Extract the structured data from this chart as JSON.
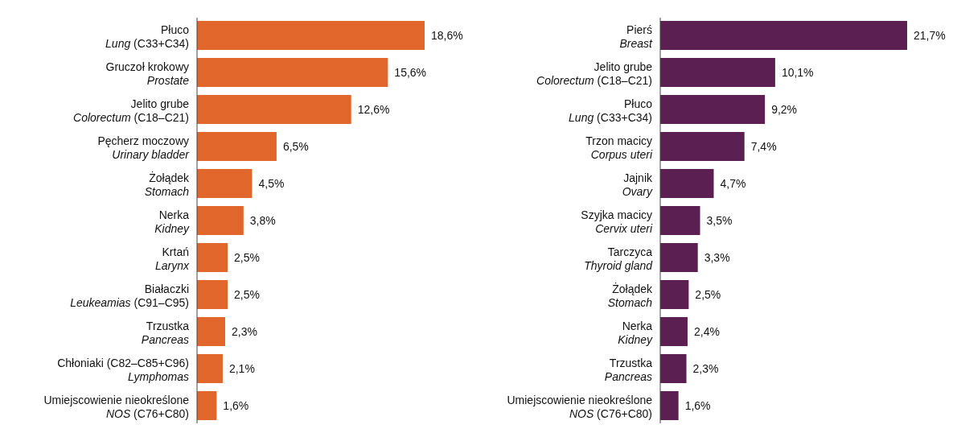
{
  "chart_data": [
    {
      "type": "bar",
      "orientation": "horizontal",
      "categories": [
        "Płuco\nLung (C33+C34)",
        "Gruczoł krokowy\nProstate",
        "Jelito grube\nColorectum (C18–C21)",
        "Pęcherz moczowy\nUrinary bladder",
        "Żołądek\nStomach",
        "Nerka\nKidney",
        "Krtań\nLarynx",
        "Białaczki\nLeukeamias (C91–C95)",
        "Trzustka\nPancreas",
        "Chłoniaki (C82–C85+C96)\nLymphomas",
        "Umiejscowienie nieokreślone\nNOS (C76+C80)"
      ],
      "values": [
        18.6,
        15.6,
        12.6,
        6.5,
        4.5,
        3.8,
        2.5,
        2.5,
        2.3,
        2.1,
        1.6
      ],
      "value_labels": [
        "18,6%",
        "15,6%",
        "12,6%",
        "6,5%",
        "4,5%",
        "3,8%",
        "2,5%",
        "2,5%",
        "2,3%",
        "2,1%",
        "1,6%"
      ],
      "color": "#e0662c"
    },
    {
      "type": "bar",
      "orientation": "horizontal",
      "categories": [
        "Pierś\nBreast",
        "Jelito grube\nColorectum (C18–C21)",
        "Płuco\nLung (C33+C34)",
        "Trzon macicy\nCorpus uteri",
        "Jajnik\nOvary",
        "Szyjka macicy\nCervix uteri",
        "Tarczyca\nThyroid gland",
        "Żołądek\nStomach",
        "Nerka\nKidney",
        "Trzustka\nPancreas",
        "Umiejscowienie nieokreślone\nNOS (C76+C80)"
      ],
      "values": [
        21.7,
        10.1,
        9.2,
        7.4,
        4.7,
        3.5,
        3.3,
        2.5,
        2.4,
        2.3,
        1.6
      ],
      "value_labels": [
        "21,7%",
        "10,1%",
        "9,2%",
        "7,4%",
        "4,7%",
        "3,5%",
        "3,3%",
        "2,5%",
        "2,4%",
        "2,3%",
        "1,6%"
      ],
      "color": "#5c1f51"
    }
  ]
}
